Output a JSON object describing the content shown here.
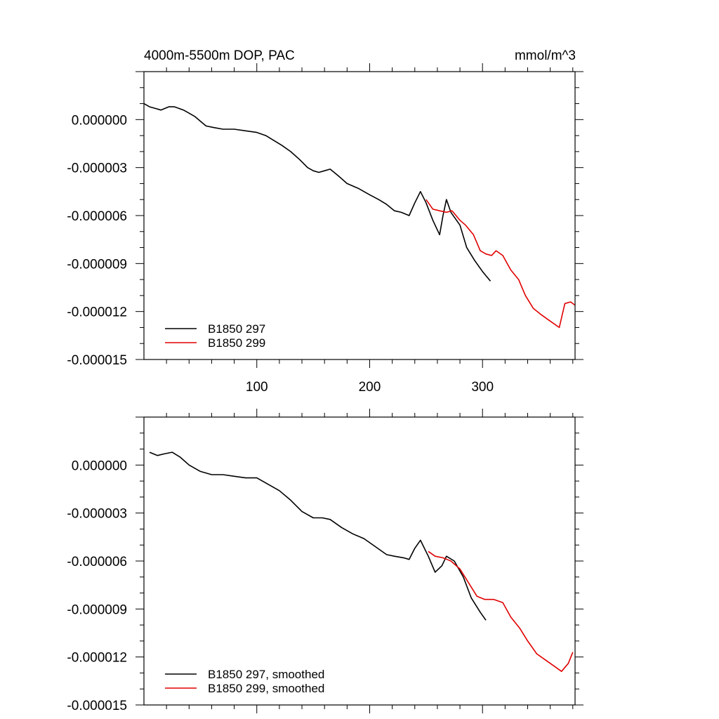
{
  "chart_data": [
    {
      "type": "line",
      "title_left": "4000m-5500m DOP, PAC",
      "title_right": "mmol/m^3",
      "xlabel": "",
      "ylabel": "",
      "xlim": [
        0,
        382
      ],
      "ylim": [
        -1.5e-05,
        3e-06
      ],
      "x_ticks": [
        100,
        200,
        300
      ],
      "x_tick_labels": [
        "100",
        "200",
        "300"
      ],
      "y_ticks": [
        0.0,
        -3e-06,
        -6e-06,
        -9e-06,
        -1.2e-05,
        -1.5e-05
      ],
      "y_tick_labels": [
        "0.000000",
        "-0.000003",
        "-0.000006",
        "-0.000009",
        "-0.000012",
        "-0.000015"
      ],
      "legend_position": "bottom-left",
      "series": [
        {
          "name": "B1850 297",
          "color": "#000000",
          "x": [
            0,
            5,
            10,
            15,
            22,
            27,
            35,
            40,
            45,
            50,
            55,
            62,
            70,
            80,
            90,
            100,
            108,
            115,
            122,
            130,
            138,
            145,
            150,
            155,
            160,
            165,
            172,
            180,
            190,
            200,
            208,
            215,
            222,
            228,
            235,
            240,
            245,
            250,
            256,
            262,
            265,
            268,
            272,
            280,
            286,
            293,
            300,
            307
          ],
          "y": [
            1e-06,
            8e-07,
            7e-07,
            6e-07,
            8e-07,
            8e-07,
            6e-07,
            4e-07,
            2e-07,
            -1e-07,
            -4e-07,
            -5e-07,
            -6e-07,
            -6e-07,
            -7e-07,
            -8e-07,
            -1e-06,
            -1.3e-06,
            -1.6e-06,
            -2e-06,
            -2.5e-06,
            -3e-06,
            -3.2e-06,
            -3.3e-06,
            -3.2e-06,
            -3.1e-06,
            -3.5e-06,
            -4e-06,
            -4.3e-06,
            -4.7e-06,
            -5e-06,
            -5.3e-06,
            -5.7e-06,
            -5.8e-06,
            -6e-06,
            -5.2e-06,
            -4.5e-06,
            -5.2e-06,
            -6.3e-06,
            -7.2e-06,
            -6e-06,
            -5e-06,
            -5.8e-06,
            -6.6e-06,
            -8e-06,
            -8.8e-06,
            -9.5e-06,
            -1.01e-05
          ]
        },
        {
          "name": "B1850 299",
          "color": "#e00000",
          "x": [
            250,
            256,
            262,
            268,
            273,
            280,
            285,
            292,
            298,
            303,
            308,
            312,
            318,
            325,
            332,
            338,
            345,
            352,
            360,
            368,
            373,
            378,
            382
          ],
          "y": [
            -5e-06,
            -5.6e-06,
            -5.7e-06,
            -5.8e-06,
            -5.7e-06,
            -6.3e-06,
            -6.6e-06,
            -7.2e-06,
            -8.2e-06,
            -8.4e-06,
            -8.5e-06,
            -8.2e-06,
            -8.5e-06,
            -9.4e-06,
            -1e-05,
            -1.1e-05,
            -1.18e-05,
            -1.22e-05,
            -1.26e-05,
            -1.3e-05,
            -1.15e-05,
            -1.14e-05,
            -1.16e-05
          ]
        }
      ]
    },
    {
      "type": "line",
      "xlabel": "",
      "ylabel": "",
      "xlim": [
        0,
        382
      ],
      "ylim": [
        -1.5e-05,
        3e-06
      ],
      "x_ticks": [
        100,
        200,
        300
      ],
      "y_ticks": [
        0.0,
        -3e-06,
        -6e-06,
        -9e-06,
        -1.2e-05,
        -1.5e-05
      ],
      "y_tick_labels": [
        "0.000000",
        "-0.000003",
        "-0.000006",
        "-0.000009",
        "-0.000012",
        "-0.000015"
      ],
      "legend_position": "bottom-left",
      "series": [
        {
          "name": "B1850 297, smoothed",
          "color": "#000000",
          "x": [
            5,
            12,
            18,
            25,
            32,
            40,
            50,
            60,
            70,
            80,
            90,
            100,
            110,
            120,
            130,
            140,
            150,
            158,
            165,
            175,
            185,
            195,
            205,
            215,
            222,
            230,
            235,
            240,
            245,
            252,
            258,
            264,
            268,
            275,
            283,
            290,
            298,
            303
          ],
          "y": [
            8e-07,
            6e-07,
            7e-07,
            8e-07,
            5e-07,
            0.0,
            -4e-07,
            -6e-07,
            -6e-07,
            -7e-07,
            -8e-07,
            -8e-07,
            -1.2e-06,
            -1.6e-06,
            -2.2e-06,
            -2.9e-06,
            -3.3e-06,
            -3.3e-06,
            -3.4e-06,
            -3.9e-06,
            -4.3e-06,
            -4.6e-06,
            -5.1e-06,
            -5.6e-06,
            -5.7e-06,
            -5.8e-06,
            -5.9e-06,
            -5.2e-06,
            -4.7e-06,
            -5.7e-06,
            -6.7e-06,
            -6.3e-06,
            -5.7e-06,
            -6e-06,
            -7e-06,
            -8.3e-06,
            -9.2e-06,
            -9.7e-06
          ]
        },
        {
          "name": "B1850 299, smoothed",
          "color": "#e00000",
          "x": [
            252,
            258,
            265,
            272,
            280,
            288,
            295,
            302,
            310,
            318,
            325,
            333,
            340,
            348,
            356,
            364,
            370,
            376,
            380
          ],
          "y": [
            -5.4e-06,
            -5.7e-06,
            -5.8e-06,
            -6e-06,
            -6.5e-06,
            -7.4e-06,
            -8.2e-06,
            -8.4e-06,
            -8.4e-06,
            -8.6e-06,
            -9.5e-06,
            -1.02e-05,
            -1.1e-05,
            -1.18e-05,
            -1.22e-05,
            -1.26e-05,
            -1.29e-05,
            -1.24e-05,
            -1.17e-05
          ]
        }
      ]
    }
  ]
}
